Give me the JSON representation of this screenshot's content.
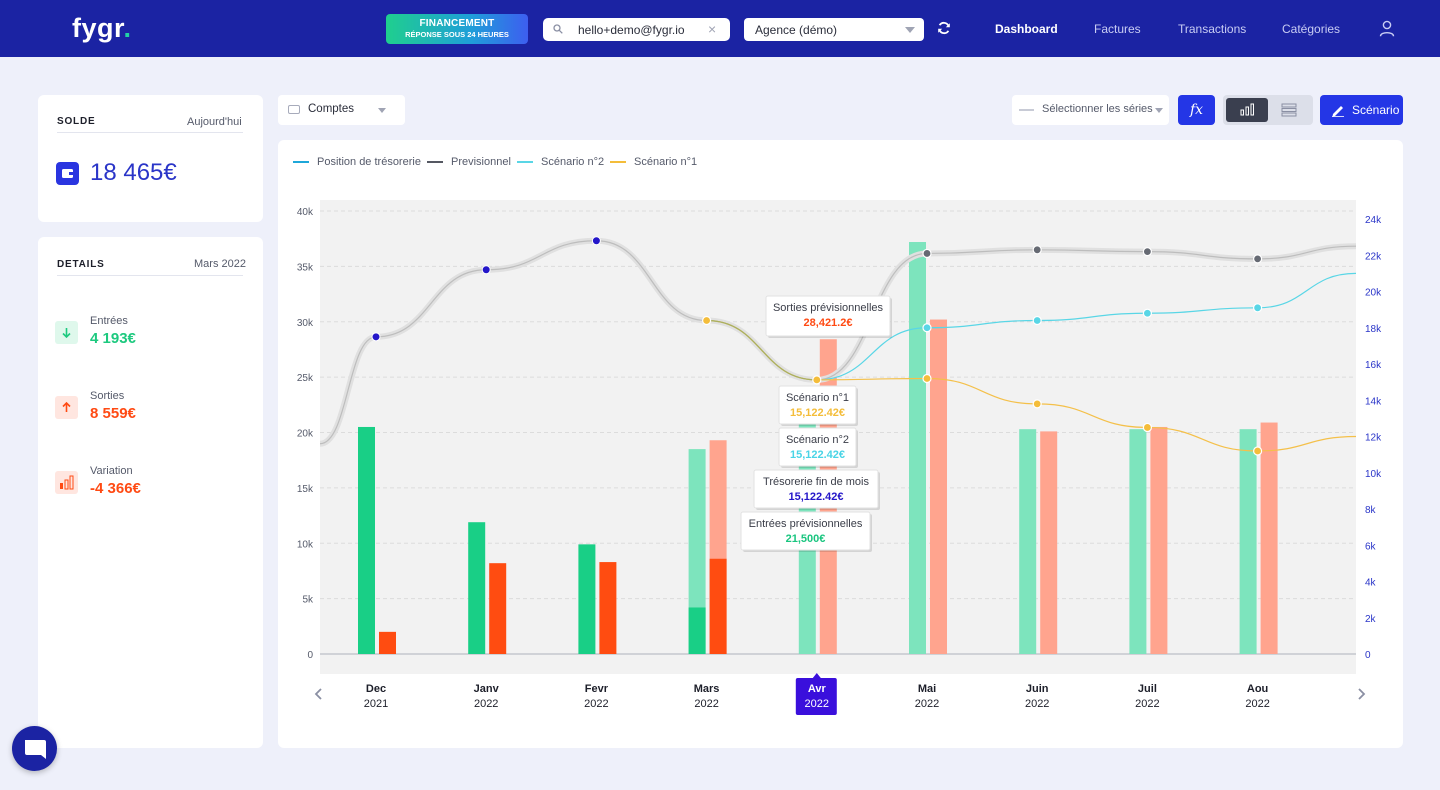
{
  "header": {
    "logo_main": "fygr",
    "logo_dot": ".",
    "promo_line1": "FINANCEMENT",
    "promo_line2": "RÉPONSE SOUS 24 HEURES",
    "search_value": "hello+demo@fygr.io",
    "agency_value": "Agence (démo)",
    "nav": [
      "Dashboard",
      "Factures",
      "Transactions",
      "Catégories"
    ]
  },
  "solde": {
    "title": "SOLDE",
    "subtitle": "Aujourd'hui",
    "value": "18 465€"
  },
  "details": {
    "title": "DETAILS",
    "subtitle": "Mars 2022",
    "items": [
      {
        "label": "Entrées",
        "value": "4 193€",
        "color": "#1dc97f"
      },
      {
        "label": "Sorties",
        "value": "8 559€",
        "color": "#ff4a13"
      },
      {
        "label": "Variation",
        "value": "-4 366€",
        "color": "#ff4a13"
      }
    ]
  },
  "toolbar": {
    "accounts_label": "Comptes",
    "series_placeholder": "Sélectionner les séries",
    "fx_label": "fx",
    "scenario_label": "Scénario"
  },
  "legend": [
    {
      "label": "Position de trésorerie",
      "color": "#1ea7d9"
    },
    {
      "label": "Previsionnel",
      "color": "#555862"
    },
    {
      "label": "Scénario n°2",
      "color": "#59d6e6"
    },
    {
      "label": "Scénario n°1",
      "color": "#f4bd3a"
    }
  ],
  "chart_data": {
    "type": "bar",
    "categories": [
      {
        "month": "Dec",
        "year": "2021"
      },
      {
        "month": "Janv",
        "year": "2022"
      },
      {
        "month": "Fevr",
        "year": "2022"
      },
      {
        "month": "Mars",
        "year": "2022"
      },
      {
        "month": "Avr",
        "year": "2022"
      },
      {
        "month": "Mai",
        "year": "2022"
      },
      {
        "month": "Juin",
        "year": "2022"
      },
      {
        "month": "Juil",
        "year": "2022"
      },
      {
        "month": "Aou",
        "year": "2022"
      }
    ],
    "selected_index": 4,
    "y_left": {
      "min": 0,
      "max": 40000,
      "ticks": [
        "0",
        "5k",
        "10k",
        "15k",
        "20k",
        "25k",
        "30k",
        "35k",
        "40k"
      ]
    },
    "y_right": {
      "min": 0,
      "max": 24000,
      "ticks": [
        "0",
        "2k",
        "4k",
        "6k",
        "8k",
        "10k",
        "12k",
        "14k",
        "16k",
        "18k",
        "20k",
        "22k",
        "24k"
      ]
    },
    "bars": {
      "entrees": [
        20500,
        11900,
        9900,
        4200,
        21500,
        37200,
        20300,
        20300,
        20300
      ],
      "entrees_prev": [
        null,
        null,
        null,
        18500,
        21500,
        37200,
        20300,
        20300,
        20300
      ],
      "sorties": [
        2000,
        8200,
        8300,
        8600,
        28421.2,
        30200,
        20100,
        20500,
        20900
      ],
      "sorties_prev": [
        null,
        null,
        null,
        19300,
        28421.2,
        30200,
        20100,
        20500,
        20900
      ],
      "colors": {
        "entrees": "#19cf86",
        "entrees_prev": "#7de4bd",
        "sorties": "#ff4c11",
        "sorties_prev": "#ffa48e"
      }
    },
    "lines": {
      "tresorerie": [
        17500,
        21200,
        22800,
        18400,
        15122.42
      ],
      "previsionnel": [
        null,
        null,
        null,
        null,
        15122.42,
        22100,
        22300,
        22200,
        21800
      ],
      "scenario_2": [
        null,
        null,
        null,
        null,
        15122.42,
        18000,
        18400,
        18800,
        19100
      ],
      "scenario_1": [
        null,
        null,
        null,
        18400,
        15122.42,
        15200,
        13800,
        12500,
        11200
      ]
    },
    "tooltips": [
      {
        "title": "Sorties prévisionnelles",
        "value": "28,421.2€",
        "color": "#ff4a13"
      },
      {
        "title": "Scénario n°1",
        "value": "15,122.42€",
        "color": "#f4bd3a"
      },
      {
        "title": "Scénario n°2",
        "value": "15,122.42€",
        "color": "#49d4e6"
      },
      {
        "title": "Trésorerie fin de mois",
        "value": "15,122.42€",
        "color": "#2416c9"
      },
      {
        "title": "Entrées prévisionnelles",
        "value": "21,500€",
        "color": "#19c57f"
      }
    ]
  }
}
